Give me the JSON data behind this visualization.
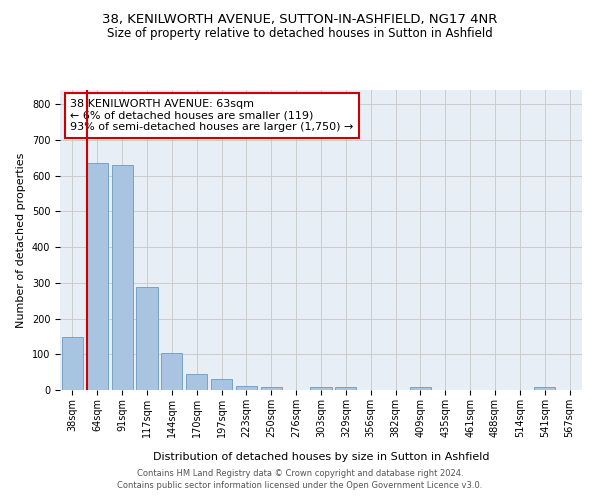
{
  "title": "38, KENILWORTH AVENUE, SUTTON-IN-ASHFIELD, NG17 4NR",
  "subtitle": "Size of property relative to detached houses in Sutton in Ashfield",
  "xlabel": "Distribution of detached houses by size in Sutton in Ashfield",
  "ylabel": "Number of detached properties",
  "bin_labels": [
    "38sqm",
    "64sqm",
    "91sqm",
    "117sqm",
    "144sqm",
    "170sqm",
    "197sqm",
    "223sqm",
    "250sqm",
    "276sqm",
    "303sqm",
    "329sqm",
    "356sqm",
    "382sqm",
    "409sqm",
    "435sqm",
    "461sqm",
    "488sqm",
    "514sqm",
    "541sqm",
    "567sqm"
  ],
  "bar_values": [
    148,
    635,
    630,
    288,
    103,
    45,
    30,
    10,
    8,
    0,
    8,
    8,
    0,
    0,
    8,
    0,
    0,
    0,
    0,
    8,
    0
  ],
  "bar_color": "#a8c4e0",
  "bar_edge_color": "#5b8db8",
  "vline_color": "#cc0000",
  "annotation_box_text": "38 KENILWORTH AVENUE: 63sqm\n← 6% of detached houses are smaller (119)\n93% of semi-detached houses are larger (1,750) →",
  "annotation_box_color": "#cc0000",
  "ylim": [
    0,
    840
  ],
  "yticks": [
    0,
    100,
    200,
    300,
    400,
    500,
    600,
    700,
    800
  ],
  "grid_color": "#cccccc",
  "bg_color": "#e8eef5",
  "footer_text": "Contains HM Land Registry data © Crown copyright and database right 2024.\nContains public sector information licensed under the Open Government Licence v3.0.",
  "title_fontsize": 9.5,
  "subtitle_fontsize": 8.5,
  "axis_label_fontsize": 8.0,
  "tick_fontsize": 7.0,
  "annotation_fontsize": 8.0,
  "footer_fontsize": 6.0
}
